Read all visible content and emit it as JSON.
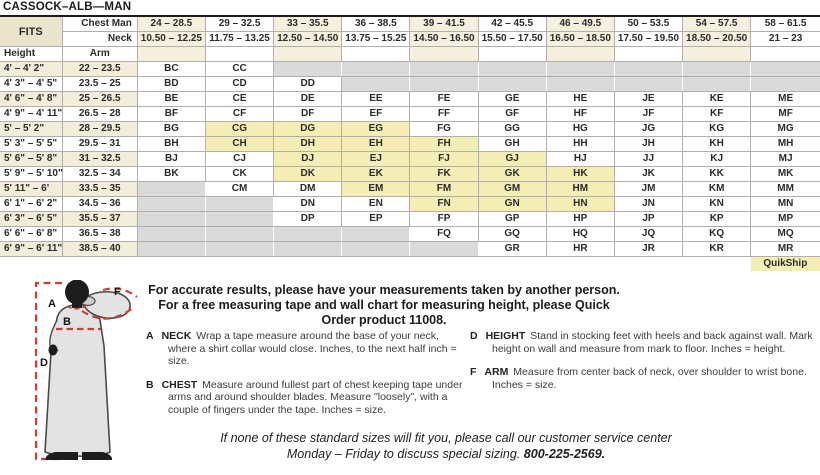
{
  "title": "CASSOCK–ALB—MAN",
  "table": {
    "fits_label": "FITS",
    "chest_header": "Chest Man",
    "neck_header": "Neck",
    "height_header": "Height",
    "arm_header": "Arm",
    "quikship_label": "QuikShip",
    "chest_ranges": [
      "24 – 28.5",
      "29 – 32.5",
      "33 – 35.5",
      "36 – 38.5",
      "39 – 41.5",
      "42 – 45.5",
      "46 – 49.5",
      "50 – 53.5",
      "54 – 57.5",
      "58 – 61.5"
    ],
    "neck_ranges": [
      "10.50 – 12.25",
      "11.75 – 13.25",
      "12.50 – 14.50",
      "13.75 – 15.25",
      "14.50 – 16.50",
      "15.50 – 17.50",
      "16.50 – 18.50",
      "17.50 – 19.50",
      "18.50 – 20.50",
      "21 – 23"
    ],
    "rows": [
      {
        "height": "4' – 4' 2\"",
        "arm": "22 – 23.5",
        "cells": [
          "BC",
          "CC",
          "",
          "",
          "",
          "",
          "",
          "",
          "",
          ""
        ]
      },
      {
        "height": "4' 3\" – 4' 5\"",
        "arm": "23.5 – 25",
        "cells": [
          "BD",
          "CD",
          "DD",
          "",
          "",
          "",
          "",
          "",
          "",
          ""
        ]
      },
      {
        "height": "4' 6\" – 4' 8\"",
        "arm": "25 – 26.5",
        "cells": [
          "BE",
          "CE",
          "DE",
          "EE",
          "FE",
          "GE",
          "HE",
          "JE",
          "KE",
          "ME"
        ]
      },
      {
        "height": "4' 9\" – 4' 11\"",
        "arm": "26.5 – 28",
        "cells": [
          "BF",
          "CF",
          "DF",
          "EF",
          "FF",
          "GF",
          "HF",
          "JF",
          "KF",
          "MF"
        ]
      },
      {
        "height": "5' – 5' 2\"",
        "arm": "28 – 29.5",
        "cells": [
          "BG",
          "CG",
          "DG",
          "EG",
          "FG",
          "GG",
          "HG",
          "JG",
          "KG",
          "MG"
        ]
      },
      {
        "height": "5' 3\" – 5' 5\"",
        "arm": "29.5 – 31",
        "cells": [
          "BH",
          "CH",
          "DH",
          "EH",
          "FH",
          "GH",
          "HH",
          "JH",
          "KH",
          "MH"
        ]
      },
      {
        "height": "5' 6\" – 5' 8\"",
        "arm": "31 – 32.5",
        "cells": [
          "BJ",
          "CJ",
          "DJ",
          "EJ",
          "FJ",
          "GJ",
          "HJ",
          "JJ",
          "KJ",
          "MJ"
        ]
      },
      {
        "height": "5' 9\" – 5' 10\"",
        "arm": "32.5 – 34",
        "cells": [
          "BK",
          "CK",
          "DK",
          "EK",
          "FK",
          "GK",
          "HK",
          "JK",
          "KK",
          "MK"
        ]
      },
      {
        "height": "5' 11\" – 6'",
        "arm": "33.5 – 35",
        "cells": [
          "",
          "CM",
          "DM",
          "EM",
          "FM",
          "GM",
          "HM",
          "JM",
          "KM",
          "MM"
        ]
      },
      {
        "height": "6' 1\" – 6' 2\"",
        "arm": "34.5 – 36",
        "cells": [
          "",
          "",
          "DN",
          "EN",
          "FN",
          "GN",
          "HN",
          "JN",
          "KN",
          "MN"
        ]
      },
      {
        "height": "6' 3\" – 6' 5\"",
        "arm": "35.5 – 37",
        "cells": [
          "",
          "",
          "DP",
          "EP",
          "FP",
          "GP",
          "HP",
          "JP",
          "KP",
          "MP"
        ]
      },
      {
        "height": "6' 6\" – 6' 8\"",
        "arm": "36.5 – 38",
        "cells": [
          "",
          "",
          "",
          "",
          "FQ",
          "GQ",
          "HQ",
          "JQ",
          "KQ",
          "MQ"
        ]
      },
      {
        "height": "6' 9\" – 6' 11\"",
        "arm": "38.5 – 40",
        "cells": [
          "",
          "",
          "",
          "",
          "",
          "GR",
          "HR",
          "JR",
          "KR",
          "MR"
        ]
      }
    ],
    "quikship_codes": [
      "CG",
      "DG",
      "EG",
      "CH",
      "DH",
      "EH",
      "FH",
      "DJ",
      "EJ",
      "FJ",
      "GJ",
      "DK",
      "EK",
      "FK",
      "GK",
      "HK",
      "EM",
      "FM",
      "GM",
      "HM",
      "FN",
      "GN",
      "HN"
    ]
  },
  "notes": {
    "line1": "For accurate results, please have your measurements taken by another person.",
    "line2": "For a free measuring tape and wall chart for measuring height, please Quick Order product 11008."
  },
  "instructions": [
    {
      "letter": "A",
      "term": "NECK",
      "text": "Wrap a tape measure around the base of your neck, where a shirt collar would close. Inches, to the next half inch = size."
    },
    {
      "letter": "B",
      "term": "CHEST",
      "text": "Measure around fullest part of chest keeping tape under arms and around shoulder blades. Measure \"loosely\", with a couple of fingers under the tape. Inches = size."
    },
    {
      "letter": "D",
      "term": "HEIGHT",
      "text": "Stand in stocking feet with heels and back against wall. Mark height on wall and measure from mark to floor. Inches = height."
    },
    {
      "letter": "F",
      "term": "ARM",
      "text": "Measure from center back of neck, over shoulder to wrist bone. Inches = size."
    }
  ],
  "footer": {
    "line1": "If none of these standard sizes will fit you, please call our customer service center",
    "line2_prefix": "Monday – Friday to discuss special sizing. ",
    "phone": "800-225-2569."
  },
  "figure": {
    "labels": {
      "a": "A",
      "b": "B",
      "d": "D",
      "f": "F"
    }
  },
  "colors": {
    "quikship_yellow": "#f4eeb5",
    "unavailable_gray": "#dadada",
    "header_column_beige": "#f5f0dd",
    "fits_beige": "#eae4cd",
    "row_cream": "#f2edd9",
    "accent_red": "#c54132"
  }
}
